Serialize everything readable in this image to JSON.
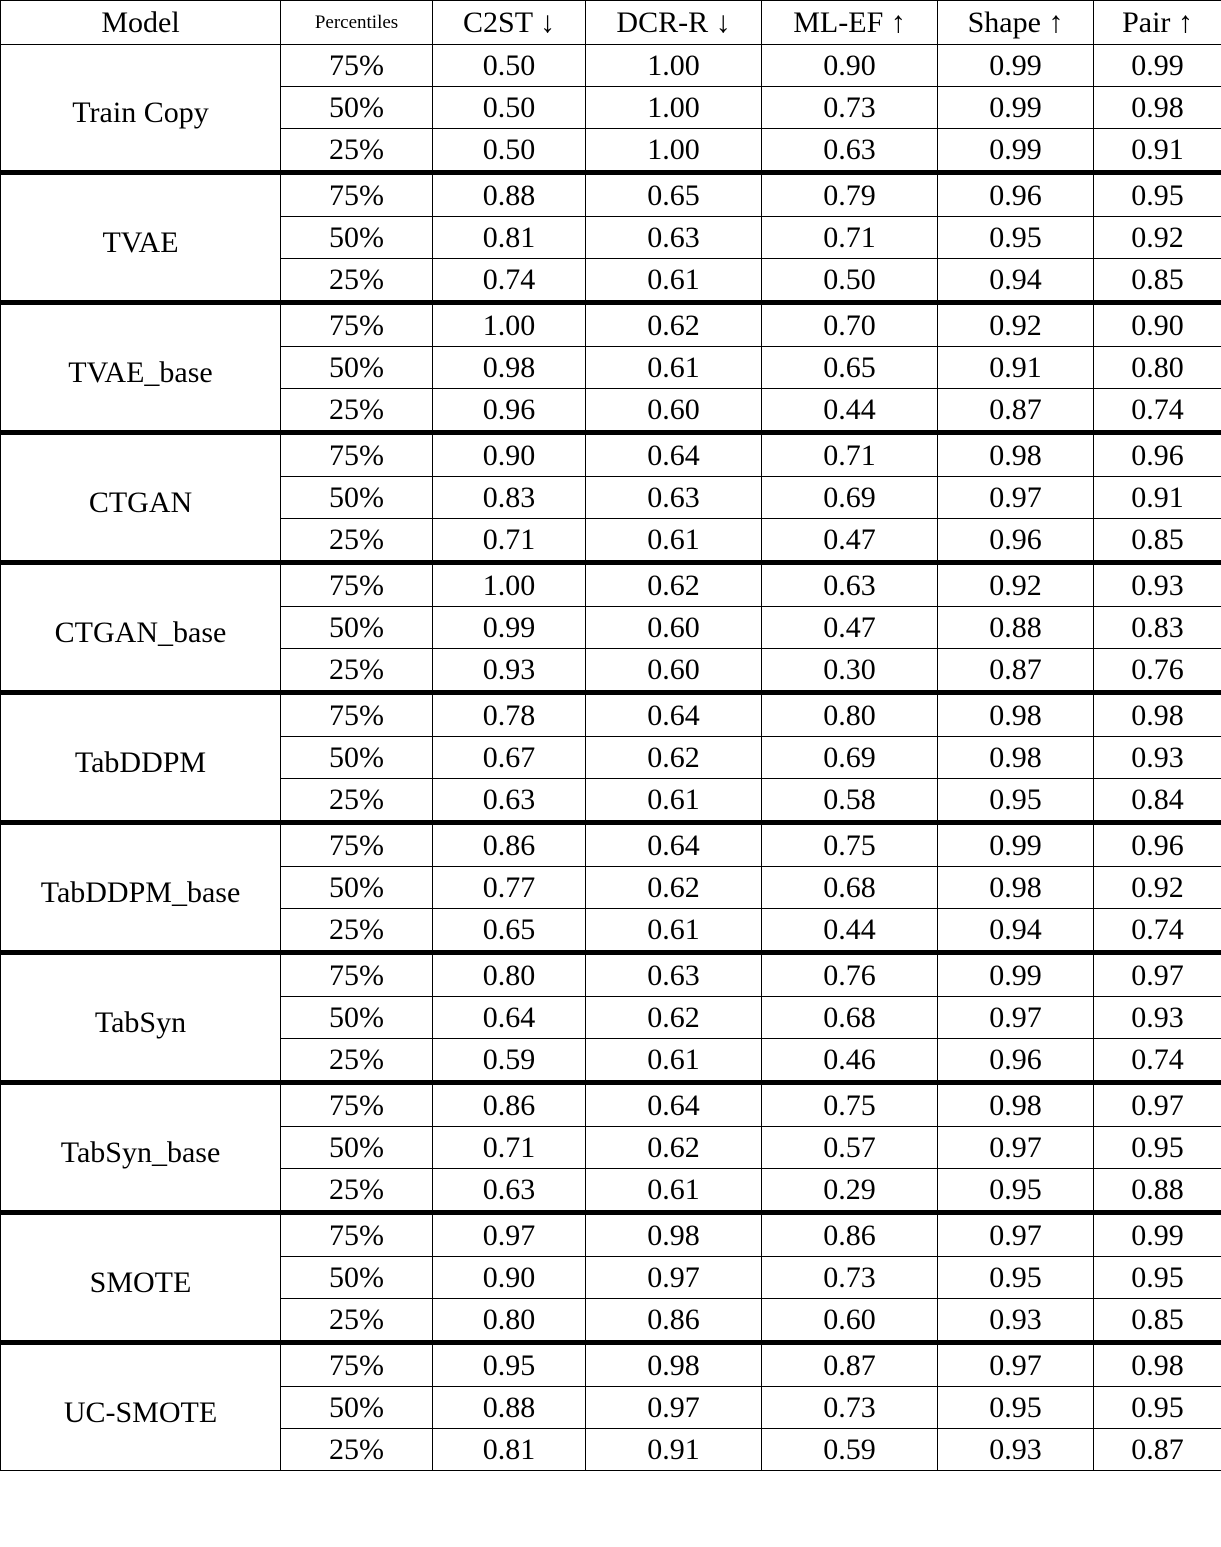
{
  "header": [
    "Model",
    "Percentiles",
    "C2ST ↓",
    "DCR-R ↓",
    "ML-EF ↑",
    "Shape ↑",
    "Pair ↑"
  ],
  "groups": [
    {
      "model": "Train Copy",
      "rows": [
        [
          "75%",
          "0.50",
          "1.00",
          "0.90",
          "0.99",
          "0.99"
        ],
        [
          "50%",
          "0.50",
          "1.00",
          "0.73",
          "0.99",
          "0.98"
        ],
        [
          "25%",
          "0.50",
          "1.00",
          "0.63",
          "0.99",
          "0.91"
        ]
      ]
    },
    {
      "model": "TVAE",
      "rows": [
        [
          "75%",
          "0.88",
          "0.65",
          "0.79",
          "0.96",
          "0.95"
        ],
        [
          "50%",
          "0.81",
          "0.63",
          "0.71",
          "0.95",
          "0.92"
        ],
        [
          "25%",
          "0.74",
          "0.61",
          "0.50",
          "0.94",
          "0.85"
        ]
      ]
    },
    {
      "model": "TVAE_base",
      "rows": [
        [
          "75%",
          "1.00",
          "0.62",
          "0.70",
          "0.92",
          "0.90"
        ],
        [
          "50%",
          "0.98",
          "0.61",
          "0.65",
          "0.91",
          "0.80"
        ],
        [
          "25%",
          "0.96",
          "0.60",
          "0.44",
          "0.87",
          "0.74"
        ]
      ]
    },
    {
      "model": "CTGAN",
      "rows": [
        [
          "75%",
          "0.90",
          "0.64",
          "0.71",
          "0.98",
          "0.96"
        ],
        [
          "50%",
          "0.83",
          "0.63",
          "0.69",
          "0.97",
          "0.91"
        ],
        [
          "25%",
          "0.71",
          "0.61",
          "0.47",
          "0.96",
          "0.85"
        ]
      ]
    },
    {
      "model": "CTGAN_base",
      "rows": [
        [
          "75%",
          "1.00",
          "0.62",
          "0.63",
          "0.92",
          "0.93"
        ],
        [
          "50%",
          "0.99",
          "0.60",
          "0.47",
          "0.88",
          "0.83"
        ],
        [
          "25%",
          "0.93",
          "0.60",
          "0.30",
          "0.87",
          "0.76"
        ]
      ]
    },
    {
      "model": "TabDDPM",
      "rows": [
        [
          "75%",
          "0.78",
          "0.64",
          "0.80",
          "0.98",
          "0.98"
        ],
        [
          "50%",
          "0.67",
          "0.62",
          "0.69",
          "0.98",
          "0.93"
        ],
        [
          "25%",
          "0.63",
          "0.61",
          "0.58",
          "0.95",
          "0.84"
        ]
      ]
    },
    {
      "model": "TabDDPM_base",
      "rows": [
        [
          "75%",
          "0.86",
          "0.64",
          "0.75",
          "0.99",
          "0.96"
        ],
        [
          "50%",
          "0.77",
          "0.62",
          "0.68",
          "0.98",
          "0.92"
        ],
        [
          "25%",
          "0.65",
          "0.61",
          "0.44",
          "0.94",
          "0.74"
        ]
      ]
    },
    {
      "model": "TabSyn",
      "rows": [
        [
          "75%",
          "0.80",
          "0.63",
          "0.76",
          "0.99",
          "0.97"
        ],
        [
          "50%",
          "0.64",
          "0.62",
          "0.68",
          "0.97",
          "0.93"
        ],
        [
          "25%",
          "0.59",
          "0.61",
          "0.46",
          "0.96",
          "0.74"
        ]
      ]
    },
    {
      "model": "TabSyn_base",
      "rows": [
        [
          "75%",
          "0.86",
          "0.64",
          "0.75",
          "0.98",
          "0.97"
        ],
        [
          "50%",
          "0.71",
          "0.62",
          "0.57",
          "0.97",
          "0.95"
        ],
        [
          "25%",
          "0.63",
          "0.61",
          "0.29",
          "0.95",
          "0.88"
        ]
      ]
    },
    {
      "model": "SMOTE",
      "rows": [
        [
          "75%",
          "0.97",
          "0.98",
          "0.86",
          "0.97",
          "0.99"
        ],
        [
          "50%",
          "0.90",
          "0.97",
          "0.73",
          "0.95",
          "0.95"
        ],
        [
          "25%",
          "0.80",
          "0.86",
          "0.60",
          "0.93",
          "0.85"
        ]
      ]
    },
    {
      "model": "UC-SMOTE",
      "rows": [
        [
          "75%",
          "0.95",
          "0.98",
          "0.87",
          "0.97",
          "0.98"
        ],
        [
          "50%",
          "0.88",
          "0.97",
          "0.73",
          "0.95",
          "0.95"
        ],
        [
          "25%",
          "0.81",
          "0.91",
          "0.59",
          "0.93",
          "0.87"
        ]
      ]
    }
  ]
}
